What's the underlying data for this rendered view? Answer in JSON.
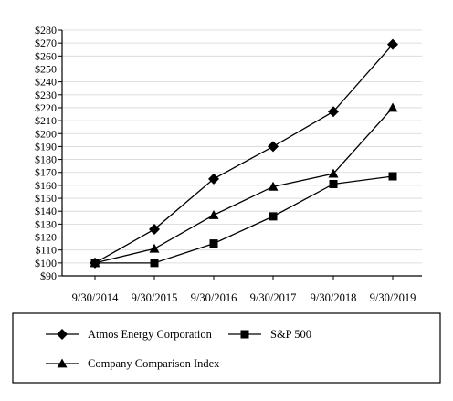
{
  "chart_data": {
    "type": "line",
    "title": "",
    "xlabel": "",
    "ylabel": "",
    "categories": [
      "9/30/2014",
      "9/30/2015",
      "9/30/2016",
      "9/30/2017",
      "9/30/2018",
      "9/30/2019"
    ],
    "ylim": [
      90,
      280
    ],
    "y_tick_step": 10,
    "y_tick_prefix": "$",
    "grid": {
      "horizontal": true,
      "vertical": false
    },
    "legend_position": "bottom",
    "series": [
      {
        "name": "Atmos Energy Corporation",
        "marker": "diamond",
        "color": "#000000",
        "values": [
          100,
          126,
          165,
          190,
          217,
          269
        ]
      },
      {
        "name": "S&P 500",
        "marker": "square",
        "color": "#000000",
        "values": [
          100,
          100,
          115,
          136,
          161,
          167
        ]
      },
      {
        "name": "Company Comparison Index",
        "marker": "triangle",
        "color": "#000000",
        "values": [
          100,
          111,
          137,
          159,
          169,
          220
        ]
      }
    ]
  }
}
